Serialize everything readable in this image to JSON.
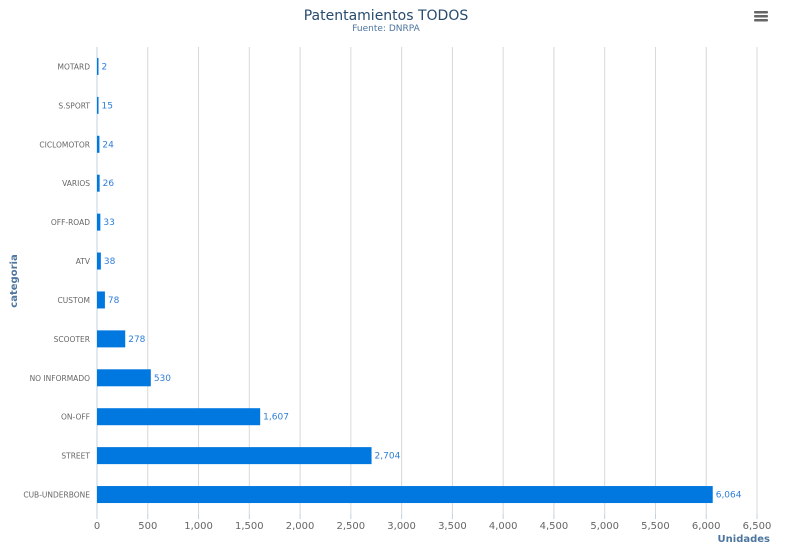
{
  "chart_data": {
    "type": "bar",
    "orientation": "horizontal",
    "title": "Patentamientos TODOS",
    "subtitle": "Fuente: DNRPA",
    "xlabel": "categoria",
    "ylabel": "Unidades",
    "categories": [
      "MOTARD",
      "S.SPORT",
      "CICLOMOTOR",
      "VARIOS",
      "OFF-ROAD",
      "ATV",
      "CUSTOM",
      "SCOOTER",
      "NO INFORMADO",
      "ON-OFF",
      "STREET",
      "CUB-UNDERBONE"
    ],
    "values": [
      2,
      15,
      24,
      26,
      33,
      38,
      78,
      278,
      530,
      1607,
      2704,
      6064
    ],
    "value_labels": [
      "2",
      "15",
      "24",
      "26",
      "33",
      "38",
      "78",
      "278",
      "530",
      "1,607",
      "2,704",
      "6,064"
    ],
    "ylim": [
      0,
      6500
    ],
    "ticks": [
      0,
      500,
      1000,
      1500,
      2000,
      2500,
      3000,
      3500,
      4000,
      4500,
      5000,
      5500,
      6000,
      6500
    ],
    "tick_labels": [
      "0",
      "500",
      "1,000",
      "1,500",
      "2,000",
      "2,500",
      "3,000",
      "3,500",
      "4,000",
      "4,500",
      "5,000",
      "5,500",
      "6,000",
      "6,500"
    ],
    "grid": true,
    "legend": "none",
    "bar_color": "#0078df",
    "grid_color": "#d8d8d8",
    "label_color": "#2f7ed8",
    "menu_icon": "hamburger-menu-icon"
  }
}
